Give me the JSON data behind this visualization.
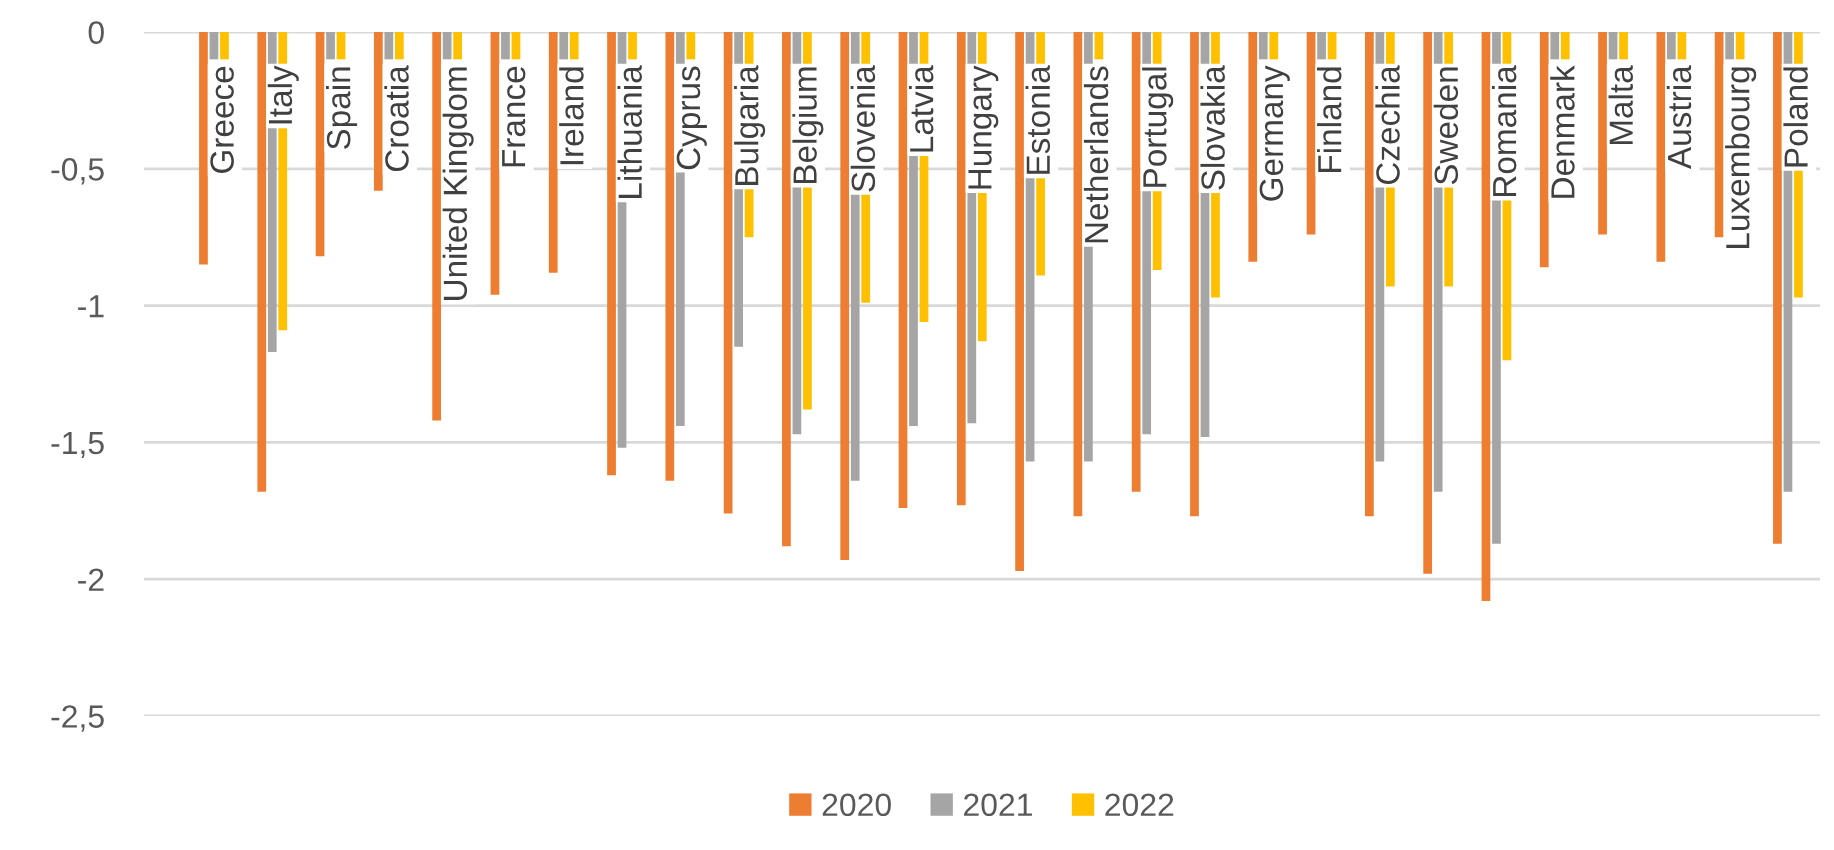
{
  "chart_data": {
    "type": "bar",
    "categories": [
      "Greece",
      "Italy",
      "Spain",
      "Croatia",
      "United Kingdom",
      "France",
      "Ireland",
      "Lithuania",
      "Cyprus",
      "Bulgaria",
      "Belgium",
      "Slovenia",
      "Latvia",
      "Hungary",
      "Estonia",
      "Netherlands",
      "Portugal",
      "Slovakia",
      "Germany",
      "Finland",
      "Czechia",
      "Sweden",
      "Romania",
      "Denmark",
      "Malta",
      "Austria",
      "Luxembourg",
      "Poland"
    ],
    "series": [
      {
        "name": "2020",
        "color": "#ed7d31",
        "values": [
          -0.85,
          -1.68,
          -0.82,
          -0.58,
          -1.42,
          -0.96,
          -0.88,
          -1.62,
          -1.64,
          -1.76,
          -1.88,
          -1.93,
          -1.74,
          -1.73,
          -1.97,
          -1.77,
          -1.68,
          -1.77,
          -0.84,
          -0.74,
          -1.77,
          -1.98,
          -2.08,
          -0.86,
          -0.74,
          -0.84,
          -0.75,
          -1.87
        ]
      },
      {
        "name": "2021",
        "color": "#a5a5a5",
        "values": [
          -0.1,
          -1.17,
          -0.1,
          -0.1,
          -0.1,
          -0.1,
          -0.1,
          -1.52,
          -1.44,
          -1.15,
          -1.47,
          -1.64,
          -1.44,
          -1.43,
          -1.57,
          -1.57,
          -1.47,
          -1.48,
          -0.1,
          -0.1,
          -1.57,
          -1.68,
          -1.87,
          -0.1,
          -0.1,
          -0.1,
          -0.1,
          -1.68
        ]
      },
      {
        "name": "2022",
        "color": "#ffc000",
        "values": [
          -0.1,
          -1.09,
          -0.1,
          -0.1,
          -0.1,
          -0.1,
          -0.1,
          -0.1,
          -0.1,
          -0.75,
          -1.38,
          -0.99,
          -1.06,
          -1.13,
          -0.89,
          -0.1,
          -0.87,
          -0.97,
          -0.1,
          -0.1,
          -0.93,
          -0.93,
          -1.2,
          -0.1,
          -0.1,
          -0.1,
          -0.1,
          -0.97
        ]
      }
    ],
    "ylim": [
      -2.5,
      0
    ],
    "yticks": [
      0,
      {
        "value": -0.5,
        "label": "-0,5"
      },
      {
        "value": -1,
        "label": "-1"
      },
      {
        "value": -1.5,
        "label": "-1,5"
      },
      {
        "value": -2,
        "label": "-2"
      },
      {
        "value": -2.5,
        "label": "-2,5"
      }
    ],
    "grid": "y",
    "legend": "bottom"
  }
}
